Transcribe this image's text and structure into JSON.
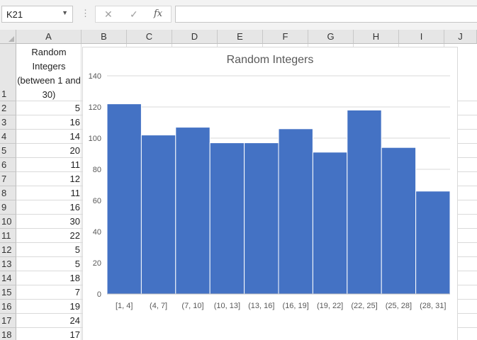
{
  "namebox": {
    "value": "K21"
  },
  "formula_bar": {
    "fx_label": "fx",
    "value": ""
  },
  "columns": [
    "A",
    "B",
    "C",
    "D",
    "E",
    "F",
    "G",
    "H",
    "I",
    "J"
  ],
  "rows": [
    "1",
    "2",
    "3",
    "4",
    "5",
    "6",
    "7",
    "8",
    "9",
    "10",
    "11",
    "12",
    "13",
    "14",
    "15",
    "16",
    "17",
    "18"
  ],
  "cells": {
    "A1": "Random Integers (between 1 and 30)",
    "A_values": [
      "5",
      "16",
      "14",
      "20",
      "11",
      "12",
      "11",
      "16",
      "30",
      "22",
      "5",
      "5",
      "18",
      "7",
      "19",
      "24",
      "17"
    ]
  },
  "chart_data": {
    "type": "bar",
    "title": "Random Integers",
    "categories": [
      "[1, 4]",
      "(4, 7]",
      "(7, 10]",
      "(10, 13]",
      "(13, 16]",
      "(16, 19]",
      "(19, 22]",
      "(22, 25]",
      "(25, 28]",
      "(28, 31]"
    ],
    "values": [
      122,
      102,
      107,
      97,
      97,
      106,
      91,
      118,
      94,
      66
    ],
    "ylim": [
      0,
      140
    ],
    "yticks": [
      "0",
      "20",
      "40",
      "60",
      "80",
      "100",
      "120",
      "140"
    ],
    "grid": true,
    "bar_color": "#4472c4"
  }
}
